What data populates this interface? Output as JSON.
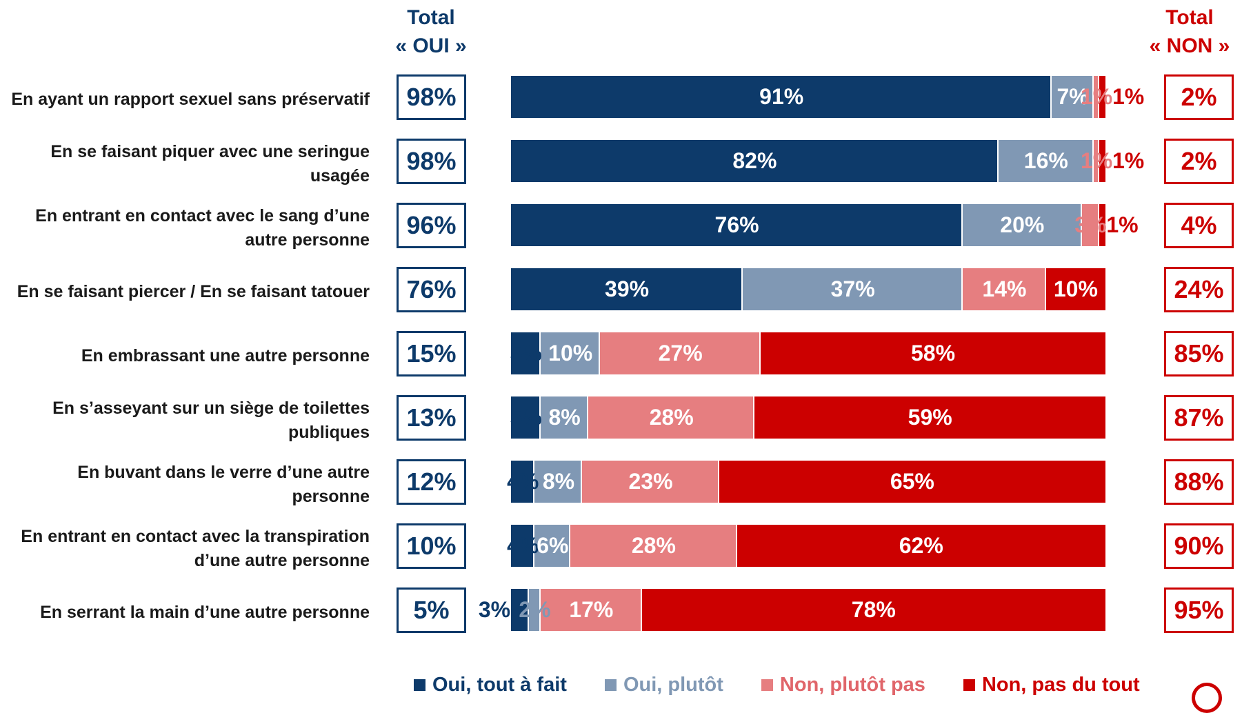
{
  "chart_data": {
    "type": "bar",
    "orientation": "horizontal",
    "stacked": true,
    "xlim": [
      0,
      100
    ],
    "categories": [
      "En ayant un rapport sexuel sans préservatif",
      "En se faisant piquer avec une seringue usagée",
      "En entrant en contact avec le sang d’une autre personne",
      "En se faisant piercer / En se faisant tatouer",
      "En embrassant une autre personne",
      "En s’asseyant sur un siège de toilettes publiques",
      "En buvant dans le verre d’une autre personne",
      "En entrant en contact avec la transpiration d’une autre personne",
      "En serrant la main d’une autre personne"
    ],
    "series": [
      {
        "name": "Oui, tout à fait",
        "color": "#0d3a6a",
        "label_color": "#ffffff",
        "values": [
          91,
          82,
          76,
          39,
          5,
          5,
          4,
          4,
          3
        ]
      },
      {
        "name": "Oui, plutôt",
        "color": "#8098b4",
        "label_color": "#ffffff",
        "values": [
          7,
          16,
          20,
          37,
          10,
          8,
          8,
          6,
          2
        ]
      },
      {
        "name": "Non, plutôt pas",
        "color": "#e67e80",
        "label_color": "#ffffff",
        "values": [
          1,
          1,
          3,
          14,
          27,
          28,
          23,
          28,
          17
        ]
      },
      {
        "name": "Non, pas du tout",
        "color": "#cc0000",
        "label_color": "#ffffff",
        "values": [
          1,
          1,
          1,
          10,
          58,
          59,
          65,
          62,
          78
        ]
      }
    ],
    "total_oui_header": [
      "Total",
      "« OUI »"
    ],
    "total_non_header": [
      "Total",
      "« NON »"
    ],
    "total_oui": [
      "98%",
      "98%",
      "96%",
      "76%",
      "15%",
      "13%",
      "12%",
      "10%",
      "5%"
    ],
    "total_non": [
      "2%",
      "2%",
      "4%",
      "24%",
      "85%",
      "87%",
      "88%",
      "90%",
      "95%"
    ],
    "legend_position": "bottom"
  }
}
